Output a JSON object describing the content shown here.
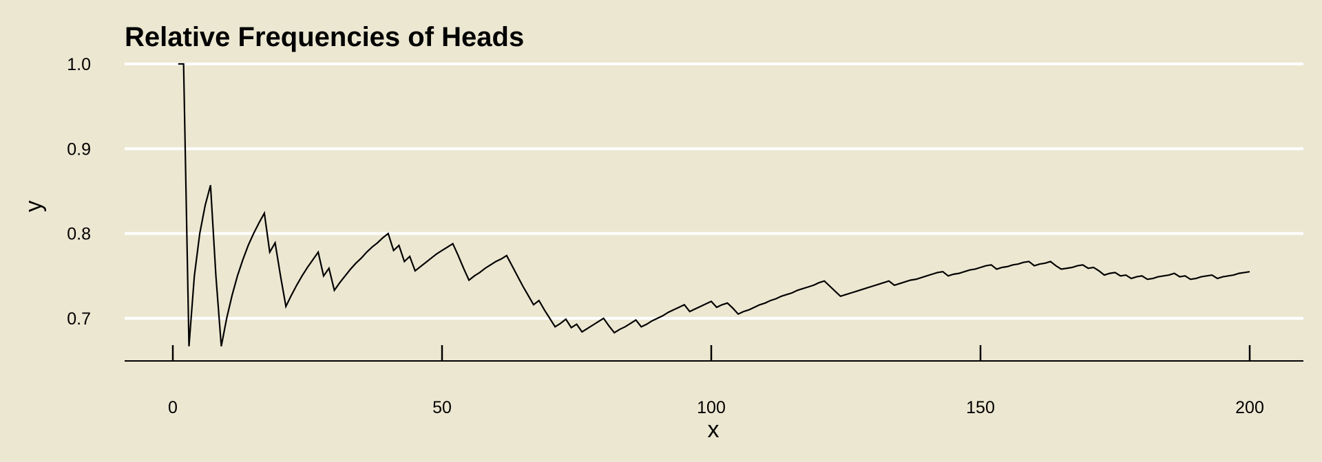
{
  "chart_data": {
    "type": "line",
    "title": "Relative Frequencies of Heads",
    "xlabel": "x",
    "ylabel": "y",
    "xlim": [
      -9,
      210
    ],
    "ylim": [
      0.65,
      1.0
    ],
    "x_ticks": [
      0,
      50,
      100,
      150,
      200
    ],
    "y_ticks": [
      0.7,
      0.8,
      0.9,
      1.0
    ],
    "x_tick_labels": [
      "0",
      "50",
      "100",
      "150",
      "200"
    ],
    "y_tick_labels": [
      "0.7",
      "0.8",
      "0.9",
      "1.0"
    ],
    "grid": "horizontal",
    "legend": "none",
    "colors": {
      "background": "#ECE7D1",
      "grid": "#FFFFFF",
      "line": "#000000"
    },
    "series": [
      {
        "points": [
          [
            1,
            1.0
          ],
          [
            2,
            1.0
          ],
          [
            3,
            0.667
          ],
          [
            4,
            0.75
          ],
          [
            5,
            0.8
          ],
          [
            6,
            0.833
          ],
          [
            7,
            0.857
          ],
          [
            8,
            0.75
          ],
          [
            9,
            0.667
          ],
          [
            10,
            0.7
          ],
          [
            11,
            0.727
          ],
          [
            12,
            0.75
          ],
          [
            13,
            0.769
          ],
          [
            14,
            0.786
          ],
          [
            15,
            0.8
          ],
          [
            16,
            0.8125
          ],
          [
            17,
            0.824
          ],
          [
            18,
            0.778
          ],
          [
            19,
            0.789
          ],
          [
            20,
            0.75
          ],
          [
            21,
            0.714
          ],
          [
            22,
            0.727
          ],
          [
            23,
            0.739
          ],
          [
            24,
            0.75
          ],
          [
            25,
            0.76
          ],
          [
            26,
            0.769
          ],
          [
            27,
            0.778
          ],
          [
            28,
            0.75
          ],
          [
            29,
            0.759
          ],
          [
            30,
            0.733
          ],
          [
            31,
            0.742
          ],
          [
            32,
            0.75
          ],
          [
            33,
            0.758
          ],
          [
            34,
            0.765
          ],
          [
            35,
            0.771
          ],
          [
            36,
            0.778
          ],
          [
            37,
            0.784
          ],
          [
            38,
            0.789
          ],
          [
            39,
            0.795
          ],
          [
            40,
            0.8
          ],
          [
            41,
            0.78
          ],
          [
            42,
            0.786
          ],
          [
            43,
            0.767
          ],
          [
            44,
            0.773
          ],
          [
            45,
            0.756
          ],
          [
            46,
            0.761
          ],
          [
            47,
            0.766
          ],
          [
            48,
            0.771
          ],
          [
            49,
            0.776
          ],
          [
            50,
            0.78
          ],
          [
            51,
            0.784
          ],
          [
            52,
            0.788
          ],
          [
            53,
            0.774
          ],
          [
            54,
            0.759
          ],
          [
            55,
            0.745
          ],
          [
            56,
            0.75
          ],
          [
            57,
            0.754
          ],
          [
            58,
            0.759
          ],
          [
            59,
            0.763
          ],
          [
            60,
            0.767
          ],
          [
            61,
            0.77
          ],
          [
            62,
            0.774
          ],
          [
            63,
            0.762
          ],
          [
            64,
            0.75
          ],
          [
            65,
            0.738
          ],
          [
            66,
            0.727
          ],
          [
            67,
            0.716
          ],
          [
            68,
            0.721
          ],
          [
            69,
            0.71
          ],
          [
            70,
            0.7
          ],
          [
            71,
            0.69
          ],
          [
            72,
            0.694
          ],
          [
            73,
            0.699
          ],
          [
            74,
            0.689
          ],
          [
            75,
            0.693
          ],
          [
            76,
            0.684
          ],
          [
            77,
            0.688
          ],
          [
            78,
            0.692
          ],
          [
            79,
            0.696
          ],
          [
            80,
            0.7
          ],
          [
            81,
            0.691
          ],
          [
            82,
            0.683
          ],
          [
            83,
            0.687
          ],
          [
            84,
            0.69
          ],
          [
            85,
            0.694
          ],
          [
            86,
            0.698
          ],
          [
            87,
            0.69
          ],
          [
            88,
            0.693
          ],
          [
            89,
            0.697
          ],
          [
            90,
            0.7
          ],
          [
            91,
            0.703
          ],
          [
            92,
            0.707
          ],
          [
            93,
            0.71
          ],
          [
            94,
            0.713
          ],
          [
            95,
            0.716
          ],
          [
            96,
            0.708
          ],
          [
            97,
            0.711
          ],
          [
            98,
            0.714
          ],
          [
            99,
            0.717
          ],
          [
            100,
            0.72
          ],
          [
            101,
            0.713
          ],
          [
            102,
            0.716
          ],
          [
            103,
            0.718
          ],
          [
            104,
            0.712
          ],
          [
            105,
            0.705
          ],
          [
            106,
            0.708
          ],
          [
            107,
            0.71
          ],
          [
            108,
            0.713
          ],
          [
            109,
            0.716
          ],
          [
            110,
            0.718
          ],
          [
            111,
            0.721
          ],
          [
            112,
            0.723
          ],
          [
            113,
            0.726
          ],
          [
            114,
            0.728
          ],
          [
            115,
            0.73
          ],
          [
            116,
            0.733
          ],
          [
            117,
            0.735
          ],
          [
            118,
            0.737
          ],
          [
            119,
            0.739
          ],
          [
            120,
            0.742
          ],
          [
            121,
            0.744
          ],
          [
            122,
            0.738
          ],
          [
            123,
            0.732
          ],
          [
            124,
            0.726
          ],
          [
            125,
            0.728
          ],
          [
            126,
            0.73
          ],
          [
            127,
            0.732
          ],
          [
            128,
            0.734
          ],
          [
            129,
            0.736
          ],
          [
            130,
            0.738
          ],
          [
            131,
            0.74
          ],
          [
            132,
            0.742
          ],
          [
            133,
            0.744
          ],
          [
            134,
            0.739
          ],
          [
            135,
            0.741
          ],
          [
            136,
            0.743
          ],
          [
            137,
            0.745
          ],
          [
            138,
            0.746
          ],
          [
            139,
            0.748
          ],
          [
            140,
            0.75
          ],
          [
            141,
            0.752
          ],
          [
            142,
            0.754
          ],
          [
            143,
            0.755
          ],
          [
            144,
            0.75
          ],
          [
            145,
            0.752
          ],
          [
            146,
            0.753
          ],
          [
            147,
            0.755
          ],
          [
            148,
            0.757
          ],
          [
            149,
            0.758
          ],
          [
            150,
            0.76
          ],
          [
            151,
            0.762
          ],
          [
            152,
            0.763
          ],
          [
            153,
            0.758
          ],
          [
            154,
            0.76
          ],
          [
            155,
            0.761
          ],
          [
            156,
            0.763
          ],
          [
            157,
            0.764
          ],
          [
            158,
            0.766
          ],
          [
            159,
            0.767
          ],
          [
            160,
            0.762
          ],
          [
            161,
            0.764
          ],
          [
            162,
            0.765
          ],
          [
            163,
            0.767
          ],
          [
            164,
            0.762
          ],
          [
            165,
            0.758
          ],
          [
            166,
            0.759
          ],
          [
            167,
            0.76
          ],
          [
            168,
            0.762
          ],
          [
            169,
            0.763
          ],
          [
            170,
            0.759
          ],
          [
            171,
            0.76
          ],
          [
            172,
            0.756
          ],
          [
            173,
            0.751
          ],
          [
            174,
            0.753
          ],
          [
            175,
            0.754
          ],
          [
            176,
            0.75
          ],
          [
            177,
            0.751
          ],
          [
            178,
            0.747
          ],
          [
            179,
            0.749
          ],
          [
            180,
            0.75
          ],
          [
            181,
            0.746
          ],
          [
            182,
            0.747
          ],
          [
            183,
            0.749
          ],
          [
            184,
            0.75
          ],
          [
            185,
            0.751
          ],
          [
            186,
            0.753
          ],
          [
            187,
            0.749
          ],
          [
            188,
            0.75
          ],
          [
            189,
            0.746
          ],
          [
            190,
            0.747
          ],
          [
            191,
            0.749
          ],
          [
            192,
            0.75
          ],
          [
            193,
            0.751
          ],
          [
            194,
            0.747
          ],
          [
            195,
            0.749
          ],
          [
            196,
            0.75
          ],
          [
            197,
            0.751
          ],
          [
            198,
            0.753
          ],
          [
            199,
            0.754
          ],
          [
            200,
            0.755
          ]
        ]
      }
    ]
  }
}
